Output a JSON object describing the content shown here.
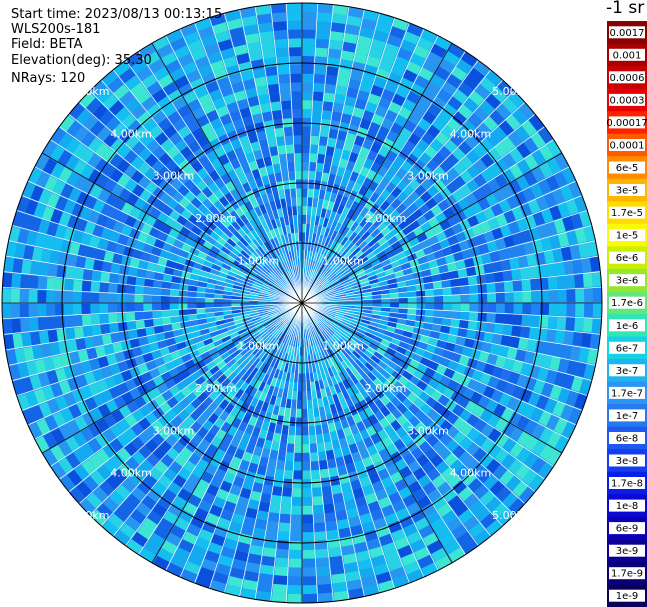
{
  "info": {
    "start_time": "Start time: 2023/08/13 00:13:15",
    "instrument": "WLS200s-181",
    "field": "Field: BETA",
    "elevation": "Elevation(deg): 35.30",
    "nrays": "NRays: 120"
  },
  "colorbar": {
    "unit_title": "-1 sr",
    "tick_labels": [
      "0.0017",
      "0.001",
      "0.0006",
      "0.0003",
      "0.00017",
      "0.0001",
      "6e-5",
      "3e-5",
      "1.7e-5",
      "1e-5",
      "6e-6",
      "3e-6",
      "1.7e-6",
      "1e-6",
      "6e-7",
      "3e-7",
      "1.7e-7",
      "1e-7",
      "6e-8",
      "3e-8",
      "1.7e-8",
      "1e-8",
      "6e-9",
      "3e-9",
      "1.7e-9",
      "1e-9"
    ],
    "colors": [
      "#880000",
      "#a80000",
      "#c80000",
      "#e80000",
      "#ff2200",
      "#ff5a00",
      "#ff8c00",
      "#ffb400",
      "#ffdc00",
      "#fafa00",
      "#c8f000",
      "#96e632",
      "#64e678",
      "#32e6b4",
      "#14d2e6",
      "#1eb4f0",
      "#2896f5",
      "#2878f0",
      "#1e5af0",
      "#143cf0",
      "#0a1ee6",
      "#0a0ad2",
      "#0a00b4",
      "#0a0096",
      "#0a0078",
      "#0a005a"
    ]
  },
  "chart_data": {
    "type": "heatmap",
    "title": "",
    "projection": "polar",
    "nrays": 120,
    "max_range_km": 5.0,
    "range_rings_km": [
      1.0,
      2.0,
      3.0,
      4.0,
      5.0
    ],
    "ring_labels": [
      "1.00km",
      "2.00km",
      "3.00km",
      "4.00km",
      "5.00km"
    ],
    "azimuth_lines_deg": [
      0,
      30,
      60,
      90,
      120,
      150,
      180,
      210,
      240,
      270,
      300,
      330
    ],
    "dominant_value_range": [
      "6e-8",
      "1e-7"
    ],
    "colorscale": "log"
  }
}
